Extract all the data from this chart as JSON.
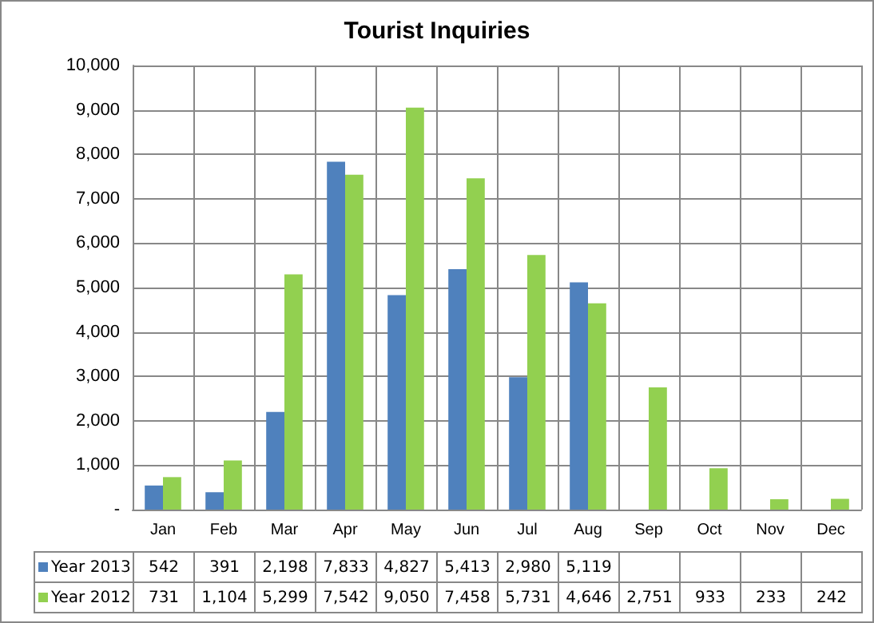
{
  "chart_data": {
    "type": "bar",
    "title": "Tourist Inquiries",
    "categories": [
      "Jan",
      "Feb",
      "Mar",
      "Apr",
      "May",
      "Jun",
      "Jul",
      "Aug",
      "Sep",
      "Oct",
      "Nov",
      "Dec"
    ],
    "series": [
      {
        "name": "Year 2013",
        "color": "#4f81bd",
        "values": [
          542,
          391,
          2198,
          7833,
          4827,
          5413,
          2980,
          5119,
          null,
          null,
          null,
          null
        ],
        "value_labels": [
          "542",
          "391",
          "2,198",
          "7,833",
          "4,827",
          "5,413",
          "2,980",
          "5,119",
          null,
          null,
          null,
          null
        ]
      },
      {
        "name": "Year 2012",
        "color": "#92d050",
        "values": [
          731,
          1104,
          5299,
          7542,
          9050,
          7458,
          5731,
          4646,
          2751,
          933,
          233,
          242
        ],
        "value_labels": [
          "731",
          "1,104",
          "5,299",
          "7,542",
          "9,050",
          "7,458",
          "5,731",
          "4,646",
          "2,751",
          "933",
          "233",
          "242"
        ]
      }
    ],
    "ylim": [
      0,
      10000
    ],
    "yticks": [
      {
        "value": 0,
        "label": "-"
      },
      {
        "value": 1000,
        "label": "1,000"
      },
      {
        "value": 2000,
        "label": "2,000"
      },
      {
        "value": 3000,
        "label": "3,000"
      },
      {
        "value": 4000,
        "label": "4,000"
      },
      {
        "value": 5000,
        "label": "5,000"
      },
      {
        "value": 6000,
        "label": "6,000"
      },
      {
        "value": 7000,
        "label": "7,000"
      },
      {
        "value": 8000,
        "label": "8,000"
      },
      {
        "value": 9000,
        "label": "9,000"
      },
      {
        "value": 10000,
        "label": "10,000"
      }
    ],
    "grid": true,
    "legend": "bottom"
  }
}
